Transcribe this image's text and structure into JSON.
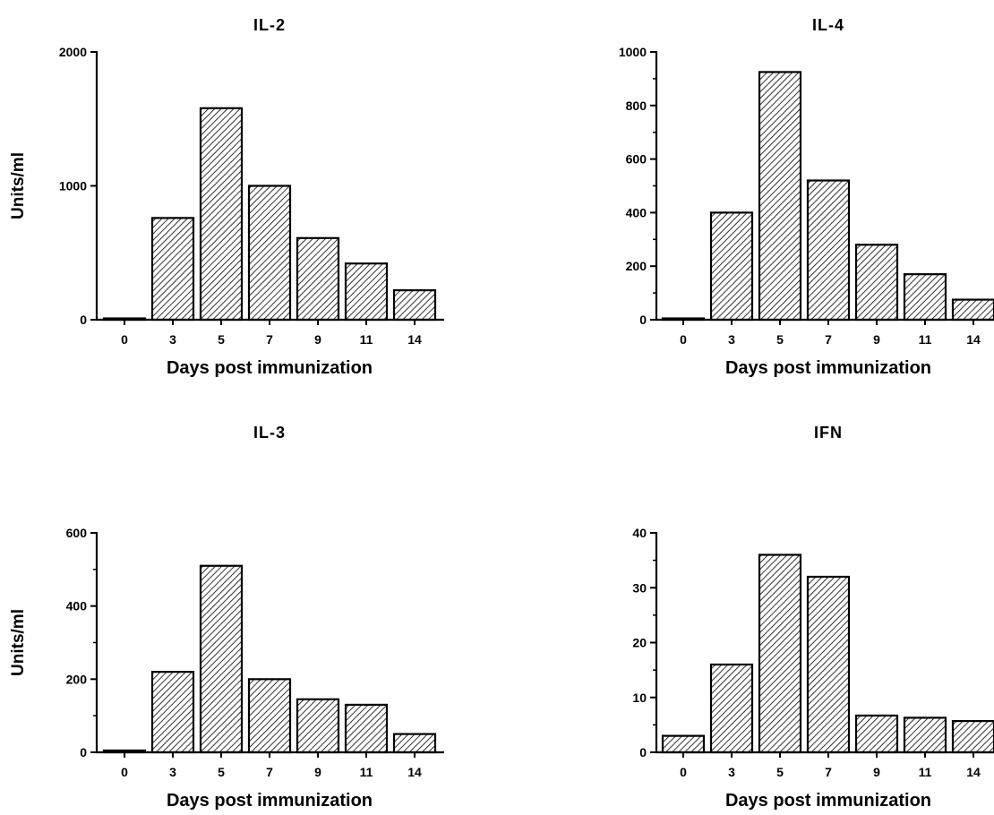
{
  "chart_data": [
    {
      "type": "bar",
      "title": "IL-2",
      "xlabel": "Days post immunization",
      "ylabel": "Units/ml",
      "categories": [
        "0",
        "3",
        "5",
        "7",
        "9",
        "11",
        "14"
      ],
      "values": [
        5,
        760,
        1580,
        1000,
        610,
        420,
        220
      ],
      "ylim": [
        0,
        2000
      ],
      "yticks": [
        0,
        1000,
        2000
      ],
      "grid": false,
      "bar_pattern": "diagonal-hatch"
    },
    {
      "type": "bar",
      "title": "IL-4",
      "xlabel": "Days post immunization",
      "ylabel": "",
      "categories": [
        "0",
        "3",
        "5",
        "7",
        "9",
        "11",
        "14"
      ],
      "values": [
        3,
        400,
        925,
        520,
        280,
        170,
        75
      ],
      "ylim": [
        0,
        1000
      ],
      "yticks": [
        0,
        200,
        400,
        600,
        800,
        1000
      ],
      "grid": false,
      "bar_pattern": "diagonal-hatch"
    },
    {
      "type": "bar",
      "title": "IL-3",
      "xlabel": "Days post immunization",
      "ylabel": "Units/ml",
      "categories": [
        "0",
        "3",
        "5",
        "7",
        "9",
        "11",
        "14"
      ],
      "values": [
        5,
        220,
        510,
        200,
        145,
        130,
        50
      ],
      "ylim": [
        0,
        600
      ],
      "yticks": [
        0,
        200,
        400,
        600
      ],
      "grid": false,
      "bar_pattern": "diagonal-hatch"
    },
    {
      "type": "bar",
      "title": "IFN",
      "xlabel": "Days post immunization",
      "ylabel": "",
      "categories": [
        "0",
        "3",
        "5",
        "7",
        "9",
        "11",
        "14"
      ],
      "values": [
        3,
        16,
        36,
        32,
        6.7,
        6.3,
        5.7
      ],
      "ylim": [
        0,
        40
      ],
      "yticks": [
        0,
        10,
        20,
        30,
        40
      ],
      "grid": false,
      "bar_pattern": "diagonal-hatch"
    }
  ]
}
